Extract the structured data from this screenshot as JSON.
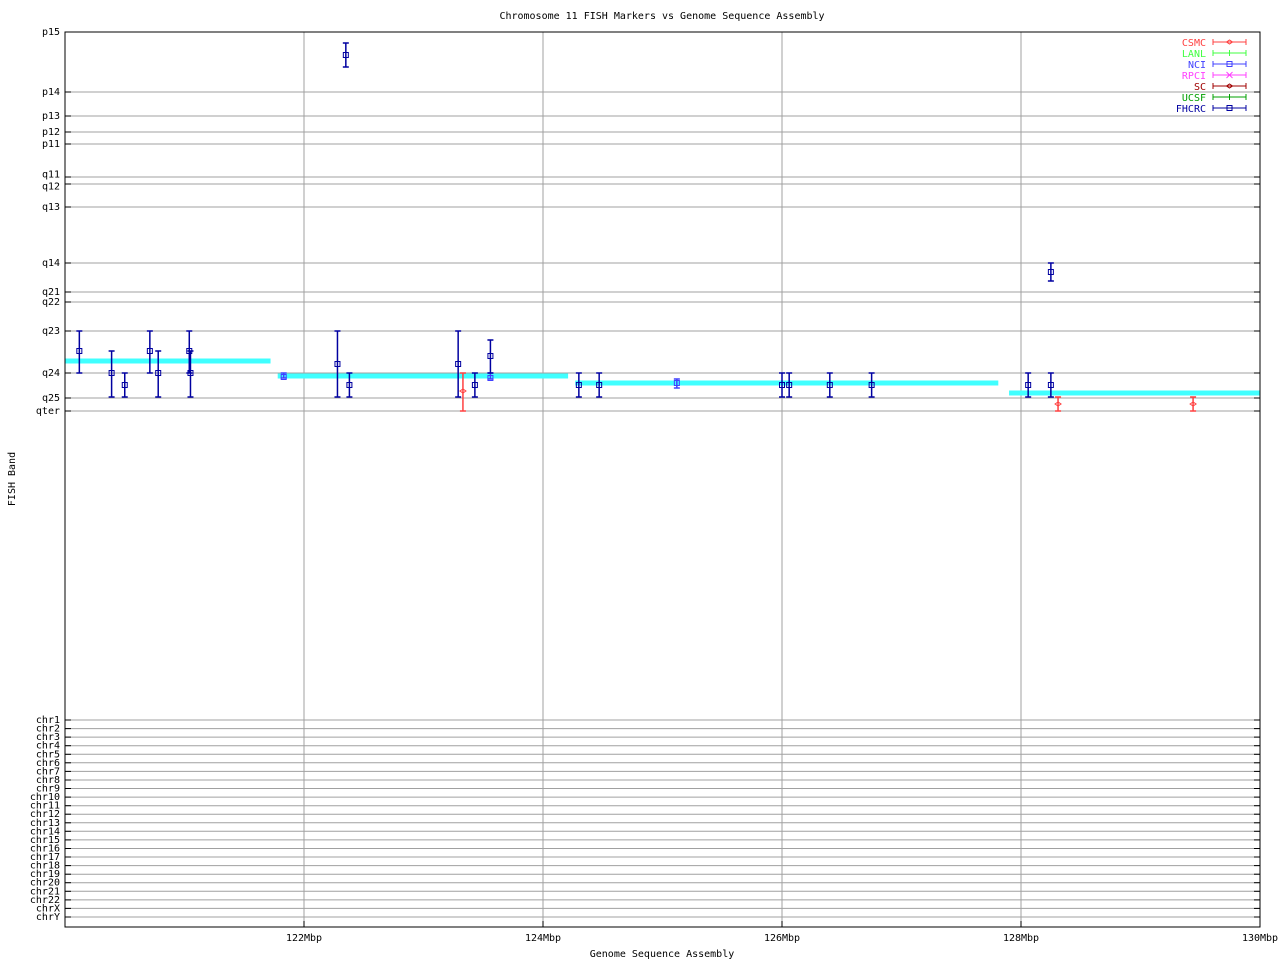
{
  "chart_data": {
    "type": "scatter",
    "title": "Chromosome 11 FISH Markers vs Genome Sequence Assembly",
    "xlabel": "Genome Sequence Assembly",
    "ylabel": "FISH Band",
    "xlim": [
      120,
      130
    ],
    "ylim": [
      0,
      89.5
    ],
    "y_inverted": true,
    "grid": true,
    "legend_position": "top-right",
    "xticks": [
      {
        "value": 122,
        "label": "122Mbp"
      },
      {
        "value": 124,
        "label": "124Mbp"
      },
      {
        "value": 126,
        "label": "126Mbp"
      },
      {
        "value": 128,
        "label": "128Mbp"
      },
      {
        "value": 130,
        "label": "130Mbp"
      }
    ],
    "yticks": [
      {
        "value": 0,
        "label": "p15"
      },
      {
        "value": 6.0,
        "label": "p14"
      },
      {
        "value": 8.4,
        "label": "p13"
      },
      {
        "value": 10.0,
        "label": "p12"
      },
      {
        "value": 11.2,
        "label": "p11"
      },
      {
        "value": 14.5,
        "label": "q11"
      },
      {
        "value": 15.2,
        "label": "q12"
      },
      {
        "value": 17.5,
        "label": "q13"
      },
      {
        "value": 23.1,
        "label": "q14"
      },
      {
        "value": 26.0,
        "label": "q21"
      },
      {
        "value": 27.0,
        "label": "q22"
      },
      {
        "value": 29.9,
        "label": "q23"
      },
      {
        "value": 34.1,
        "label": "q24"
      },
      {
        "value": 36.6,
        "label": "q25"
      },
      {
        "value": 37.9,
        "label": "qter"
      },
      {
        "value": 68.8,
        "label": "chr1"
      },
      {
        "value": 69.66,
        "label": "chr2"
      },
      {
        "value": 70.51,
        "label": "chr3"
      },
      {
        "value": 71.37,
        "label": "chr4"
      },
      {
        "value": 72.23,
        "label": "chr5"
      },
      {
        "value": 73.08,
        "label": "chr6"
      },
      {
        "value": 73.94,
        "label": "chr7"
      },
      {
        "value": 74.8,
        "label": "chr8"
      },
      {
        "value": 75.65,
        "label": "chr9"
      },
      {
        "value": 76.51,
        "label": "chr10"
      },
      {
        "value": 77.37,
        "label": "chr11"
      },
      {
        "value": 78.22,
        "label": "chr12"
      },
      {
        "value": 79.08,
        "label": "chr13"
      },
      {
        "value": 79.93,
        "label": "chr14"
      },
      {
        "value": 80.79,
        "label": "chr15"
      },
      {
        "value": 81.65,
        "label": "chr16"
      },
      {
        "value": 82.5,
        "label": "chr17"
      },
      {
        "value": 83.36,
        "label": "chr18"
      },
      {
        "value": 84.22,
        "label": "chr19"
      },
      {
        "value": 85.07,
        "label": "chr20"
      },
      {
        "value": 85.93,
        "label": "chr21"
      },
      {
        "value": 86.79,
        "label": "chr22"
      },
      {
        "value": 87.64,
        "label": "chrX"
      },
      {
        "value": 88.5,
        "label": "chrY"
      }
    ],
    "assembly_segments": {
      "color": "#40ffff",
      "segments": [
        {
          "x0": 120.0,
          "x1": 121.72,
          "y": 32.9
        },
        {
          "x0": 121.78,
          "x1": 124.21,
          "y": 34.4
        },
        {
          "x0": 124.27,
          "x1": 127.81,
          "y": 35.1
        },
        {
          "x0": 127.9,
          "x1": 130.0,
          "y": 36.1
        }
      ]
    },
    "series": [
      {
        "name": "CSMC",
        "color": "#ff4040",
        "marker": "diamond",
        "points": [
          {
            "x": 123.33,
            "y": 35.9,
            "ylow": 34.1,
            "yhigh": 37.9
          },
          {
            "x": 128.31,
            "y": 37.2,
            "ylow": 36.5,
            "yhigh": 37.9
          },
          {
            "x": 129.44,
            "y": 37.2,
            "ylow": 36.5,
            "yhigh": 37.9
          }
        ]
      },
      {
        "name": "LANL",
        "color": "#40ff40",
        "marker": "plus",
        "points": []
      },
      {
        "name": "NCI",
        "color": "#4040ff",
        "marker": "square",
        "points": [
          {
            "x": 121.83,
            "y": 34.5,
            "ylow": 34.1,
            "yhigh": 34.6
          },
          {
            "x": 123.56,
            "y": 34.6,
            "ylow": 34.1,
            "yhigh": 34.7
          },
          {
            "x": 125.12,
            "y": 35.1,
            "ylow": 34.7,
            "yhigh": 35.6
          }
        ]
      },
      {
        "name": "RPCI",
        "color": "#ff40ff",
        "marker": "cross",
        "points": []
      },
      {
        "name": "SC",
        "color": "#a00000",
        "marker": "diamond",
        "points": []
      },
      {
        "name": "UCSF",
        "color": "#00a000",
        "marker": "plus",
        "points": []
      },
      {
        "name": "FHCRC",
        "color": "#0000a0",
        "marker": "square",
        "points": [
          {
            "x": 120.12,
            "y": 31.9,
            "ylow": 29.9,
            "yhigh": 34.1
          },
          {
            "x": 120.39,
            "y": 34.1,
            "ylow": 31.9,
            "yhigh": 36.5
          },
          {
            "x": 120.5,
            "y": 35.3,
            "ylow": 34.1,
            "yhigh": 36.5
          },
          {
            "x": 120.71,
            "y": 31.9,
            "ylow": 29.9,
            "yhigh": 34.1
          },
          {
            "x": 120.78,
            "y": 34.1,
            "ylow": 31.9,
            "yhigh": 36.5
          },
          {
            "x": 121.04,
            "y": 31.9,
            "ylow": 29.9,
            "yhigh": 34.1
          },
          {
            "x": 121.05,
            "y": 34.1,
            "ylow": 31.9,
            "yhigh": 36.5
          },
          {
            "x": 122.28,
            "y": 33.2,
            "ylow": 29.9,
            "yhigh": 36.5
          },
          {
            "x": 122.35,
            "y": 2.3,
            "ylow": 1.1,
            "yhigh": 3.5
          },
          {
            "x": 122.38,
            "y": 35.3,
            "ylow": 34.1,
            "yhigh": 36.5
          },
          {
            "x": 123.29,
            "y": 33.2,
            "ylow": 29.9,
            "yhigh": 36.5
          },
          {
            "x": 123.43,
            "y": 35.3,
            "ylow": 34.1,
            "yhigh": 36.5
          },
          {
            "x": 123.56,
            "y": 32.4,
            "ylow": 30.8,
            "yhigh": 34.1
          },
          {
            "x": 124.3,
            "y": 35.3,
            "ylow": 34.1,
            "yhigh": 36.5
          },
          {
            "x": 124.47,
            "y": 35.3,
            "ylow": 34.1,
            "yhigh": 36.5
          },
          {
            "x": 126.0,
            "y": 35.3,
            "ylow": 34.1,
            "yhigh": 36.5
          },
          {
            "x": 126.06,
            "y": 35.3,
            "ylow": 34.1,
            "yhigh": 36.5
          },
          {
            "x": 126.4,
            "y": 35.3,
            "ylow": 34.1,
            "yhigh": 36.5
          },
          {
            "x": 126.75,
            "y": 35.3,
            "ylow": 34.1,
            "yhigh": 36.5
          },
          {
            "x": 128.06,
            "y": 35.3,
            "ylow": 34.1,
            "yhigh": 36.5
          },
          {
            "x": 128.25,
            "y": 35.3,
            "ylow": 34.1,
            "yhigh": 36.5
          },
          {
            "x": 128.25,
            "y": 24.0,
            "ylow": 23.1,
            "yhigh": 24.9
          }
        ]
      }
    ]
  }
}
